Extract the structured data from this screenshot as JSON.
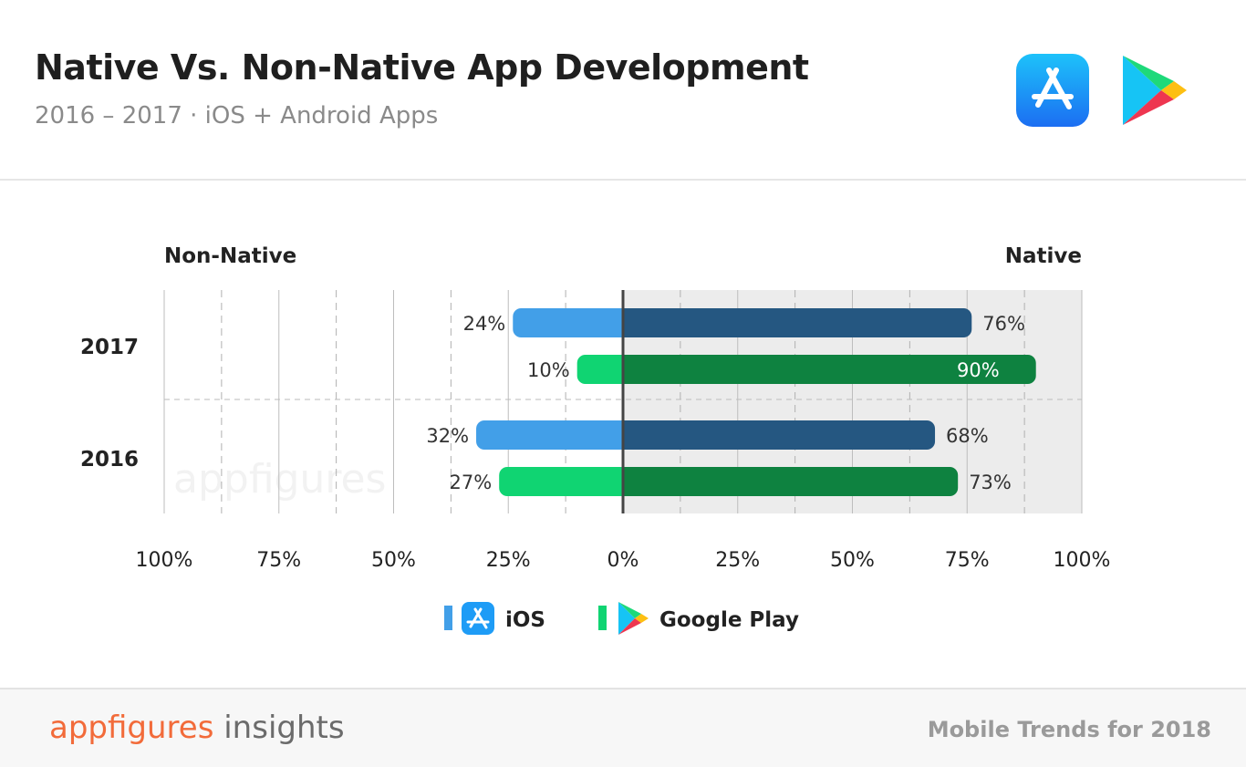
{
  "header": {
    "title": "Native Vs. Non-Native App Development",
    "subtitle": "2016 – 2017 · iOS + Android Apps",
    "logos": [
      "app-store-icon",
      "google-play-icon"
    ]
  },
  "chart_data": {
    "type": "bar",
    "orientation": "horizontal-diverging",
    "left_label": "Non-Native",
    "right_label": "Native",
    "categories": [
      "2017",
      "2016"
    ],
    "series": [
      {
        "name": "iOS",
        "non_native": [
          24,
          32
        ],
        "native": [
          76,
          68
        ],
        "color_non_native": "#429fe8",
        "color_native": "#255781"
      },
      {
        "name": "Google Play",
        "non_native": [
          10,
          27
        ],
        "native": [
          90,
          73
        ],
        "color_non_native": "#10d472",
        "color_native": "#0e8240"
      }
    ],
    "x_ticks": [
      "100%",
      "75%",
      "50%",
      "25%",
      "0%",
      "25%",
      "50%",
      "75%",
      "100%"
    ],
    "xlim": [
      -100,
      100
    ],
    "grid": true,
    "legend_position": "bottom",
    "watermark": "appfigures"
  },
  "footer": {
    "brand_main": "appfigures",
    "brand_sub": " insights",
    "right_text": "Mobile Trends for 2018"
  }
}
